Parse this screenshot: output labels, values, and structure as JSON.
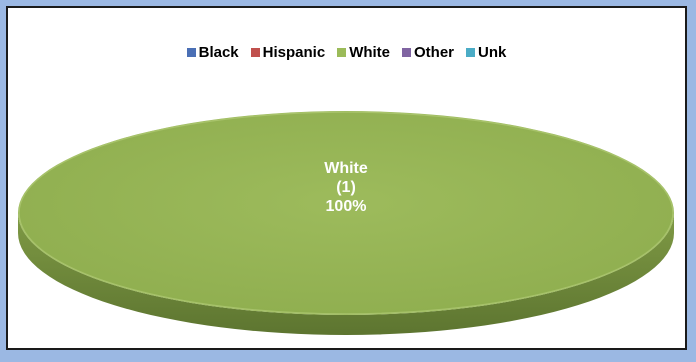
{
  "chart_data": {
    "type": "pie",
    "title": "",
    "legend_position": "top",
    "categories": [
      "Black",
      "Hispanic",
      "White",
      "Other",
      "Unk"
    ],
    "values": [
      0,
      0,
      1,
      0,
      0
    ],
    "colors": [
      "#4a6fb5",
      "#c0504d",
      "#9bbb59",
      "#8064a2",
      "#4bacc6"
    ],
    "data_labels": [
      {
        "category": "White",
        "count_text": "(1)",
        "percent_text": "100%"
      }
    ]
  },
  "background_color": "#9bb8e3",
  "plot_background": "#ffffff"
}
